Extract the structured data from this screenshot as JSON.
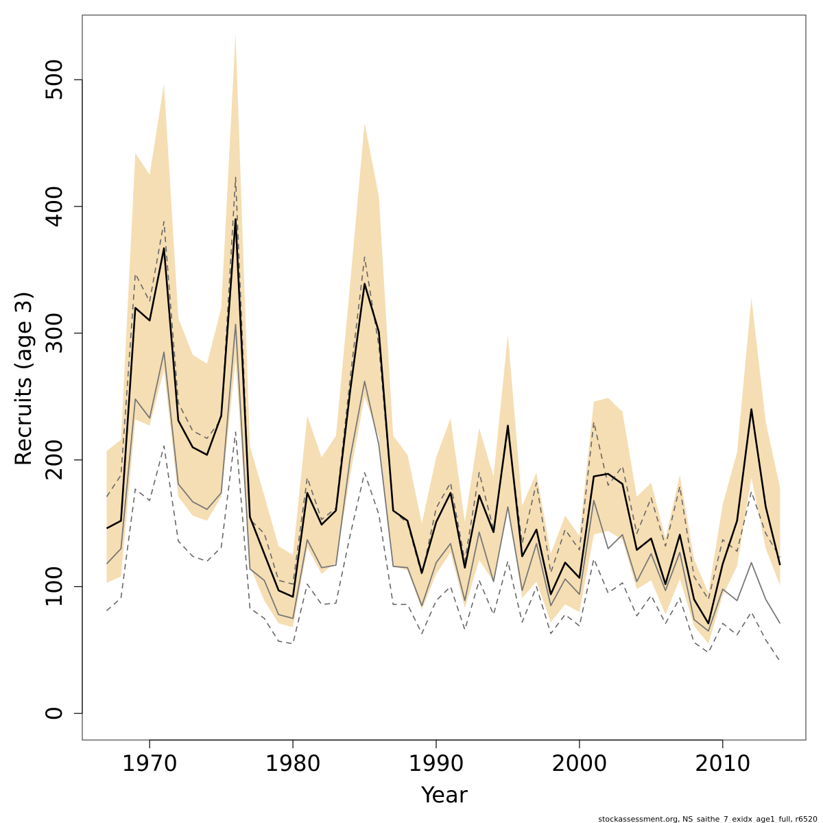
{
  "chart_data": {
    "type": "line",
    "xlabel": "Year",
    "ylabel": "Recruits (age 3)",
    "caption": "stockassessment.org, NS_saithe_7_exidx_age1_full, r6520",
    "xlim": [
      1965.3,
      2015.8
    ],
    "ylim": [
      -21,
      551
    ],
    "xticks": [
      1970,
      1980,
      1990,
      2000,
      2010
    ],
    "yticks": [
      0,
      100,
      200,
      300,
      400,
      500
    ],
    "grid": false,
    "legend": "none",
    "colors": {
      "band": "#f5deb3",
      "estimate": "#000000",
      "comparison": "#777777",
      "comparison_ci": "#666666",
      "frame": "#555555"
    },
    "x": [
      1967,
      1968,
      1969,
      1970,
      1971,
      1972,
      1973,
      1974,
      1975,
      1976,
      1977,
      1978,
      1979,
      1980,
      1981,
      1982,
      1983,
      1984,
      1985,
      1986,
      1987,
      1988,
      1989,
      1990,
      1991,
      1992,
      1993,
      1994,
      1995,
      1996,
      1997,
      1998,
      1999,
      2000,
      2001,
      2002,
      2003,
      2004,
      2005,
      2006,
      2007,
      2008,
      2009,
      2010,
      2011,
      2012,
      2013,
      2014
    ],
    "band_upper": [
      207,
      216,
      442,
      425,
      497,
      312,
      283,
      276,
      320,
      537,
      211,
      172,
      132,
      125,
      235,
      202,
      219,
      340,
      466,
      408,
      219,
      204,
      150,
      202,
      233,
      151,
      225,
      187,
      299,
      164,
      190,
      126,
      156,
      140,
      246,
      249,
      238,
      171,
      182,
      138,
      188,
      122,
      95,
      165,
      206,
      328,
      230,
      178
    ],
    "band_lower": [
      103,
      108,
      232,
      227,
      271,
      171,
      156,
      152,
      171,
      278,
      116,
      89,
      71,
      68,
      131,
      110,
      119,
      188,
      250,
      218,
      116,
      113,
      82,
      110,
      127,
      83,
      121,
      104,
      165,
      91,
      104,
      72,
      86,
      80,
      141,
      144,
      137,
      98,
      105,
      78,
      106,
      69,
      55,
      93,
      116,
      186,
      130,
      101
    ],
    "series": [
      {
        "name": "",
        "values": [
          146,
          152,
          320,
          310,
          367,
          231,
          210,
          204,
          235,
          390,
          155,
          126,
          97,
          92,
          174,
          149,
          160,
          255,
          339,
          301,
          160,
          152,
          111,
          151,
          174,
          115,
          172,
          143,
          227,
          124,
          145,
          94,
          119,
          107,
          187,
          189,
          181,
          129,
          138,
          102,
          141,
          90,
          71,
          118,
          152,
          240,
          163,
          117
        ]
      },
      {
        "name": "",
        "values": [
          118,
          130,
          248,
          233,
          285,
          181,
          167,
          161,
          174,
          307,
          114,
          105,
          78,
          75,
          137,
          115,
          117,
          202,
          262,
          212,
          116,
          115,
          85,
          119,
          134,
          89,
          143,
          104,
          163,
          97,
          134,
          85,
          106,
          94,
          168,
          130,
          141,
          104,
          126,
          97,
          127,
          74,
          65,
          98,
          89,
          119,
          90,
          71
        ]
      },
      {
        "name": "",
        "values": [
          171,
          188,
          347,
          325,
          388,
          245,
          223,
          217,
          232,
          423,
          153,
          142,
          105,
          102,
          186,
          153,
          162,
          265,
          360,
          290,
          160,
          150,
          109,
          162,
          182,
          120,
          190,
          145,
          223,
          134,
          182,
          111,
          145,
          129,
          230,
          180,
          195,
          142,
          170,
          132,
          179,
          108,
          90,
          137,
          128,
          175,
          142,
          123
        ]
      },
      {
        "name": "",
        "values": [
          81,
          91,
          177,
          168,
          211,
          136,
          124,
          120,
          131,
          222,
          83,
          75,
          57,
          55,
          102,
          86,
          87,
          141,
          190,
          157,
          86,
          86,
          63,
          89,
          100,
          66,
          105,
          78,
          120,
          72,
          100,
          63,
          78,
          69,
          122,
          95,
          103,
          77,
          93,
          71,
          91,
          56,
          48,
          71,
          62,
          80,
          58,
          41
        ]
      }
    ]
  }
}
